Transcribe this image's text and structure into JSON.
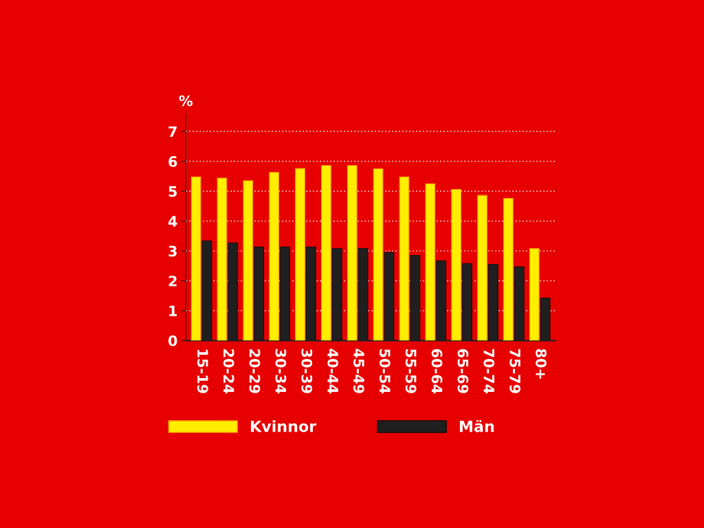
{
  "chart_data": {
    "type": "bar",
    "ylabel": "%",
    "categories": [
      "15-19",
      "20-24",
      "20-29",
      "30-34",
      "30-39",
      "40-44",
      "45-49",
      "50-54",
      "55-59",
      "60-64",
      "65-69",
      "70-74",
      "75-79",
      "80+"
    ],
    "series": [
      {
        "name": "Kvinnor",
        "color": "#ffee00",
        "values": [
          5.48,
          5.44,
          5.35,
          5.63,
          5.76,
          5.86,
          5.86,
          5.75,
          5.48,
          5.25,
          5.06,
          4.86,
          4.76,
          3.08
        ]
      },
      {
        "name": "Män",
        "color": "#1f1f1f",
        "values": [
          3.34,
          3.27,
          3.13,
          3.13,
          3.13,
          3.08,
          3.08,
          2.95,
          2.85,
          2.67,
          2.58,
          2.55,
          2.47,
          1.42
        ]
      }
    ],
    "ylim": [
      0,
      7.6
    ],
    "yticks": [
      0,
      1,
      2,
      3,
      4,
      5,
      6,
      7
    ],
    "grid": "y",
    "legend": "bottom"
  }
}
